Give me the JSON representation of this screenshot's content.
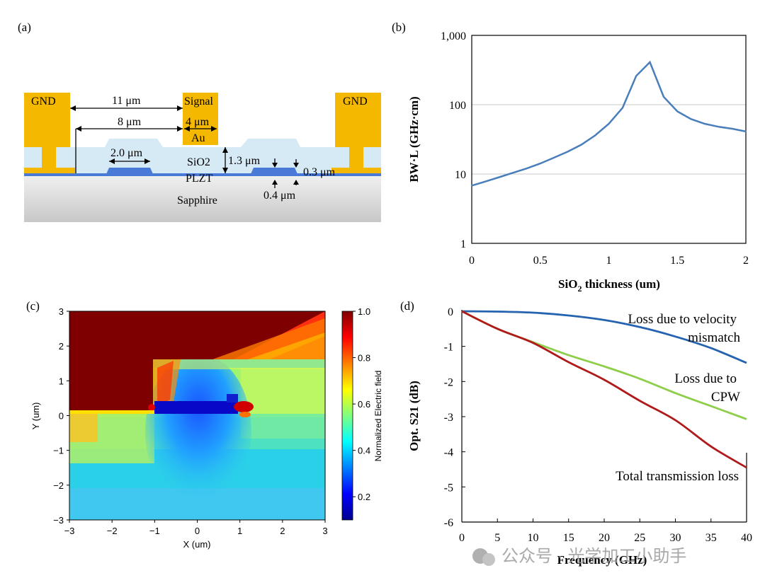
{
  "panel_a": {
    "label": "(a)",
    "gnd_left": "GND",
    "gnd_right": "GND",
    "signal": "Signal",
    "au": "Au",
    "sio2": "SiO2",
    "plzt": "PLZT",
    "sapphire": "Sapphire",
    "dim_11": "11 μm",
    "dim_8": "8 μm",
    "dim_4": "4 μm",
    "dim_2": "2.0 μm",
    "dim_13": "1.3 μm",
    "dim_03": "0.3 μm",
    "dim_04": "0.4 μm"
  },
  "panel_b": {
    "label": "(b)",
    "ylabel": "BW·L (GHz·cm)",
    "xlabel_main": "SiO",
    "xlabel_sub": "2",
    "xlabel_rest": " thickness (um)",
    "line_color": "#4a7ebb"
  },
  "panel_c": {
    "label": "(c)",
    "xlabel": "X (um)",
    "ylabel": "Y (um)",
    "colorbar_label": "Normalized Electric field",
    "colorbar_ticks": [
      "1.0",
      "0.8",
      "0.6",
      "0.4",
      "0.2"
    ]
  },
  "panel_d": {
    "label": "(d)",
    "ylabel": "Opt. S21 (dB)",
    "xlabel": "Frequency (GHz)",
    "ann_velocity_1": "Loss due to velocity",
    "ann_velocity_2": "mismatch",
    "ann_cpw_1": "Loss due to",
    "ann_cpw_2": "CPW",
    "ann_total": "Total transmission loss"
  },
  "watermark": {
    "text": "公众号 · 光学加工小助手"
  },
  "chart_data": [
    {
      "id": "b",
      "type": "line",
      "xlabel": "SiO2 thickness (um)",
      "ylabel": "BW·L (GHz·cm)",
      "xlim": [
        0,
        2
      ],
      "ylim": [
        1,
        1000
      ],
      "yscale": "log",
      "xticks": [
        "0",
        "0.5",
        "1",
        "1.5",
        "2"
      ],
      "yticks": [
        {
          "value": 1,
          "label": "1"
        },
        {
          "value": 10,
          "label": "10"
        },
        {
          "value": 100,
          "label": "100"
        },
        {
          "value": 1000,
          "label": "1,000"
        }
      ],
      "grid": "horizontal",
      "series": [
        {
          "color": "#4a7ebb",
          "x": [
            0,
            0.1,
            0.2,
            0.3,
            0.4,
            0.5,
            0.6,
            0.7,
            0.8,
            0.9,
            1.0,
            1.1,
            1.2,
            1.3,
            1.4,
            1.5,
            1.6,
            1.7,
            1.8,
            1.9,
            2.0
          ],
          "y": [
            6.8,
            7.8,
            9.0,
            10.4,
            12.0,
            14.2,
            17.2,
            21.0,
            26.5,
            36,
            53,
            90,
            260,
            410,
            130,
            80,
            62,
            53,
            48,
            45,
            41
          ]
        }
      ]
    },
    {
      "id": "c",
      "type": "heatmap",
      "xlabel": "X (um)",
      "ylabel": "Y (um)",
      "xlim": [
        -3,
        3
      ],
      "ylim": [
        -3,
        3
      ],
      "xticks": [
        "−3",
        "−2",
        "−1",
        "0",
        "1",
        "2",
        "3"
      ],
      "yticks": [
        "3",
        "2",
        "1",
        "0",
        "−1",
        "−2",
        "−3"
      ],
      "colorbar": {
        "label": "Normalized Electric field",
        "range": [
          0.1,
          1.0
        ],
        "ticks": [
          1.0,
          0.8,
          0.6,
          0.4,
          0.2
        ]
      },
      "colormap": "jet"
    },
    {
      "id": "d",
      "type": "line",
      "xlabel": "Frequency (GHz)",
      "ylabel": "Opt. S21 (dB)",
      "xlim": [
        0,
        40
      ],
      "ylim": [
        -6,
        0
      ],
      "xticks": [
        "0",
        "5",
        "10",
        "15",
        "20",
        "25",
        "30",
        "35",
        "40"
      ],
      "yticks": [
        "0",
        "-1",
        "-2",
        "-3",
        "-4",
        "-5",
        "-6"
      ],
      "series": [
        {
          "label": "Loss due to velocity mismatch",
          "color": "#2563b0",
          "x": [
            0,
            5,
            10,
            15,
            20,
            25,
            30,
            35,
            40
          ],
          "y": [
            0,
            -0.01,
            -0.04,
            -0.12,
            -0.25,
            -0.45,
            -0.72,
            -1.05,
            -1.47
          ]
        },
        {
          "label": "Loss due to CPW",
          "color": "#8fce4a",
          "x": [
            0,
            5,
            10,
            15,
            20,
            25,
            30,
            35,
            40
          ],
          "y": [
            0,
            -0.5,
            -0.88,
            -1.25,
            -1.57,
            -1.92,
            -2.33,
            -2.7,
            -3.07
          ]
        },
        {
          "label": "Total transmission loss",
          "color": "#b01a1a",
          "x": [
            0,
            5,
            10,
            15,
            20,
            25,
            30,
            35,
            40
          ],
          "y": [
            0,
            -0.5,
            -0.9,
            -1.45,
            -1.95,
            -2.55,
            -3.1,
            -3.85,
            -4.45
          ]
        }
      ]
    }
  ]
}
